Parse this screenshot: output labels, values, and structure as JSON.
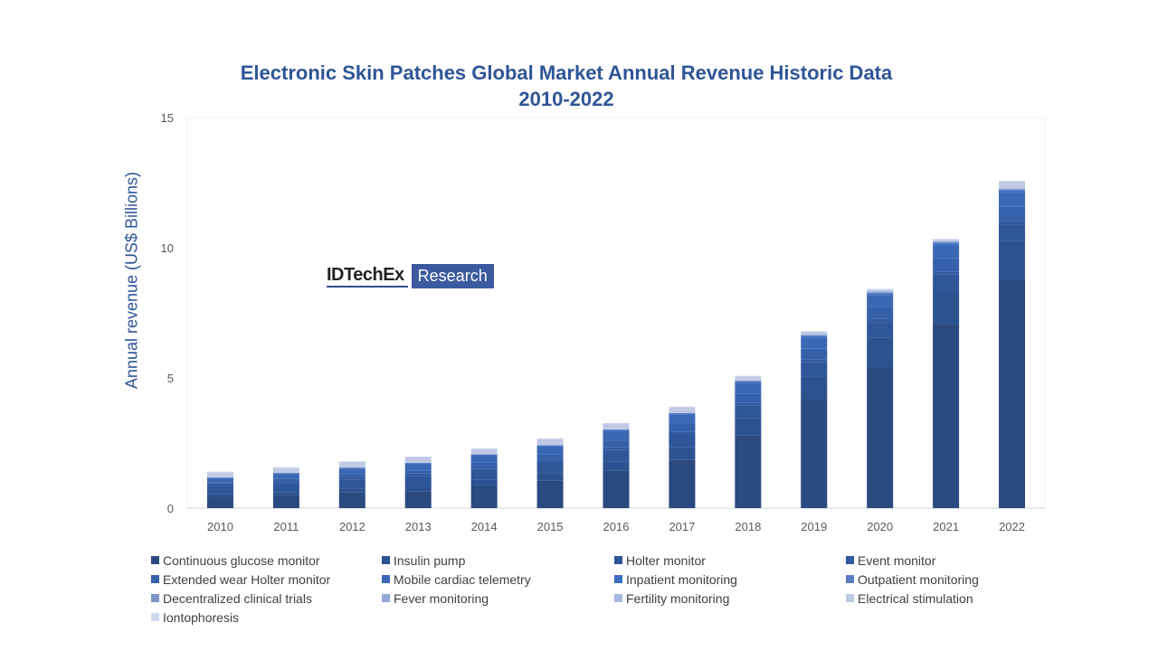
{
  "chart_data": {
    "type": "bar",
    "stacked": true,
    "title": "Electronic Skin Patches Global Market Annual Revenue Historic Data 2010-2022",
    "title_lines": [
      "Electronic Skin Patches Global Market Annual Revenue Historic Data",
      "2010-2022"
    ],
    "xlabel": "",
    "ylabel": "Annual revenue (US$ Billions)",
    "ylim": [
      0,
      15
    ],
    "yticks": [
      0,
      5,
      10,
      15
    ],
    "grid": false,
    "legend": "bottom",
    "categories": [
      "2010",
      "2011",
      "2012",
      "2013",
      "2014",
      "2015",
      "2016",
      "2017",
      "2018",
      "2019",
      "2020",
      "2021",
      "2022"
    ],
    "series": [
      {
        "name": "Continuous glucose monitor",
        "color": "#2a4a80",
        "values": [
          0.45,
          0.5,
          0.6,
          0.65,
          0.85,
          1.05,
          1.45,
          1.85,
          2.8,
          4.2,
          5.4,
          7.05,
          8.75
        ]
      },
      {
        "name": "Insulin pump",
        "color": "#2d5290",
        "values": [
          0.1,
          0.12,
          0.15,
          0.2,
          0.25,
          0.3,
          0.35,
          0.5,
          0.65,
          0.85,
          1.15,
          1.3,
          1.5
        ]
      },
      {
        "name": "Holter monitor",
        "color": "#30569a",
        "values": [
          0.3,
          0.32,
          0.35,
          0.38,
          0.4,
          0.42,
          0.45,
          0.48,
          0.5,
          0.55,
          0.6,
          0.62,
          0.65
        ]
      },
      {
        "name": "Event monitor",
        "color": "#3359a2",
        "values": [
          0.1,
          0.1,
          0.1,
          0.1,
          0.1,
          0.1,
          0.1,
          0.1,
          0.1,
          0.12,
          0.12,
          0.12,
          0.12
        ]
      },
      {
        "name": "Extended wear Holter monitor",
        "color": "#3561aa",
        "values": [
          0.05,
          0.08,
          0.1,
          0.12,
          0.15,
          0.2,
          0.25,
          0.3,
          0.35,
          0.4,
          0.45,
          0.5,
          0.55
        ]
      },
      {
        "name": "Mobile cardiac telemetry",
        "color": "#3a68b4",
        "values": [
          0.15,
          0.2,
          0.22,
          0.25,
          0.28,
          0.3,
          0.35,
          0.35,
          0.4,
          0.42,
          0.45,
          0.5,
          0.55
        ]
      },
      {
        "name": "Inpatient monitoring",
        "color": "#3d6dc0",
        "values": [
          0.02,
          0.02,
          0.03,
          0.03,
          0.03,
          0.04,
          0.05,
          0.05,
          0.06,
          0.06,
          0.07,
          0.08,
          0.08
        ]
      },
      {
        "name": "Outpatient monitoring",
        "color": "#5b7cc4",
        "values": [
          0.01,
          0.01,
          0.01,
          0.01,
          0.01,
          0.01,
          0.02,
          0.02,
          0.02,
          0.03,
          0.03,
          0.03,
          0.03
        ]
      },
      {
        "name": "Decentralized clinical trials",
        "color": "#7b94cc",
        "values": [
          0,
          0,
          0,
          0,
          0,
          0,
          0,
          0,
          0.01,
          0.02,
          0.03,
          0.03,
          0.03
        ]
      },
      {
        "name": "Fever monitoring",
        "color": "#94a8d8",
        "values": [
          0,
          0,
          0,
          0,
          0,
          0,
          0,
          0.01,
          0.01,
          0.01,
          0.02,
          0.02,
          0.02
        ]
      },
      {
        "name": "Fertility monitoring",
        "color": "#a9b8e0",
        "values": [
          0,
          0,
          0,
          0,
          0,
          0.01,
          0.01,
          0.01,
          0.01,
          0.02,
          0.02,
          0.02,
          0.02
        ]
      },
      {
        "name": "Electrical stimulation",
        "color": "#c0c9e6",
        "values": [
          0.2,
          0.2,
          0.22,
          0.22,
          0.2,
          0.22,
          0.22,
          0.2,
          0.15,
          0.1,
          0.06,
          0.05,
          0.25
        ]
      },
      {
        "name": "Iontophoresis",
        "color": "#d0d7ee",
        "values": [
          0.02,
          0.02,
          0.02,
          0.02,
          0.03,
          0.03,
          0.02,
          0.03,
          0.02,
          0.02,
          0.02,
          0.02,
          0.02
        ]
      }
    ]
  },
  "logo": {
    "text1": "IDTechEx",
    "text2": "Research"
  }
}
